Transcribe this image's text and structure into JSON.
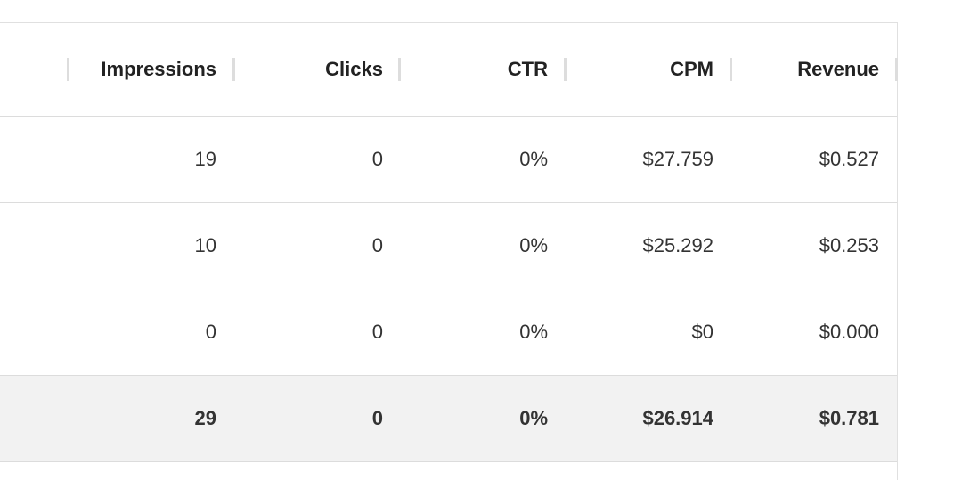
{
  "table": {
    "columns": [
      "Impressions",
      "Clicks",
      "CTR",
      "CPM",
      "Revenue"
    ],
    "rows": [
      [
        "19",
        "0",
        "0%",
        "$27.759",
        "$0.527"
      ],
      [
        "10",
        "0",
        "0%",
        "$25.292",
        "$0.253"
      ],
      [
        "0",
        "0",
        "0%",
        "$0",
        "$0.000"
      ]
    ],
    "total": [
      "29",
      "0",
      "0%",
      "$26.914",
      "$0.781"
    ]
  }
}
